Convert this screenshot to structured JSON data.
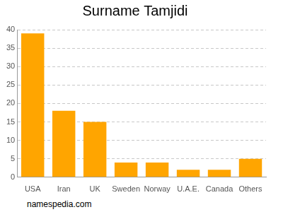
{
  "chart_data": {
    "type": "bar",
    "title": "Surname Tamjidi",
    "categories": [
      "USA",
      "Iran",
      "UK",
      "Sweden",
      "Norway",
      "U.A.E.",
      "Canada",
      "Others"
    ],
    "values": [
      39,
      18,
      15,
      4,
      4,
      2,
      2,
      5
    ],
    "color": "#ffa500",
    "ylim": [
      0,
      40
    ],
    "yticks": [
      0,
      5,
      10,
      15,
      20,
      25,
      30,
      35,
      40
    ],
    "grid": true,
    "annotations": [
      "namespedia.com"
    ]
  }
}
